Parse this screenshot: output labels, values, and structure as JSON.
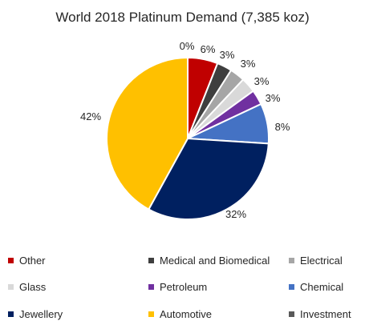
{
  "chart_data": {
    "type": "pie",
    "title": "World 2018 Platinum Demand (7,385 koz)",
    "slices": [
      {
        "name": "Investment",
        "value": 0,
        "label": "0%",
        "color": "#595959"
      },
      {
        "name": "Other",
        "value": 6,
        "label": "6%",
        "color": "#c00000"
      },
      {
        "name": "Medical and Biomedical",
        "value": 3,
        "label": "3%",
        "color": "#3f3f3f"
      },
      {
        "name": "Electrical",
        "value": 3,
        "label": "3%",
        "color": "#a6a6a6"
      },
      {
        "name": "Glass",
        "value": 3,
        "label": "3%",
        "color": "#d9d9d9"
      },
      {
        "name": "Petroleum",
        "value": 3,
        "label": "3%",
        "color": "#7030a0"
      },
      {
        "name": "Chemical",
        "value": 8,
        "label": "8%",
        "color": "#4472c4"
      },
      {
        "name": "Jewellery",
        "value": 32,
        "label": "32%",
        "color": "#002060"
      },
      {
        "name": "Automotive",
        "value": 42,
        "label": "42%",
        "color": "#ffc000"
      }
    ],
    "legend": [
      {
        "name": "Other",
        "color": "#c00000"
      },
      {
        "name": "Medical and Biomedical",
        "color": "#3f3f3f"
      },
      {
        "name": "Electrical",
        "color": "#a6a6a6"
      },
      {
        "name": "Glass",
        "color": "#d9d9d9"
      },
      {
        "name": "Petroleum",
        "color": "#7030a0"
      },
      {
        "name": "Chemical",
        "color": "#4472c4"
      },
      {
        "name": "Jewellery",
        "color": "#002060"
      },
      {
        "name": "Automotive",
        "color": "#ffc000"
      },
      {
        "name": "Investment",
        "color": "#595959"
      }
    ],
    "legend_placement": "bottom"
  }
}
